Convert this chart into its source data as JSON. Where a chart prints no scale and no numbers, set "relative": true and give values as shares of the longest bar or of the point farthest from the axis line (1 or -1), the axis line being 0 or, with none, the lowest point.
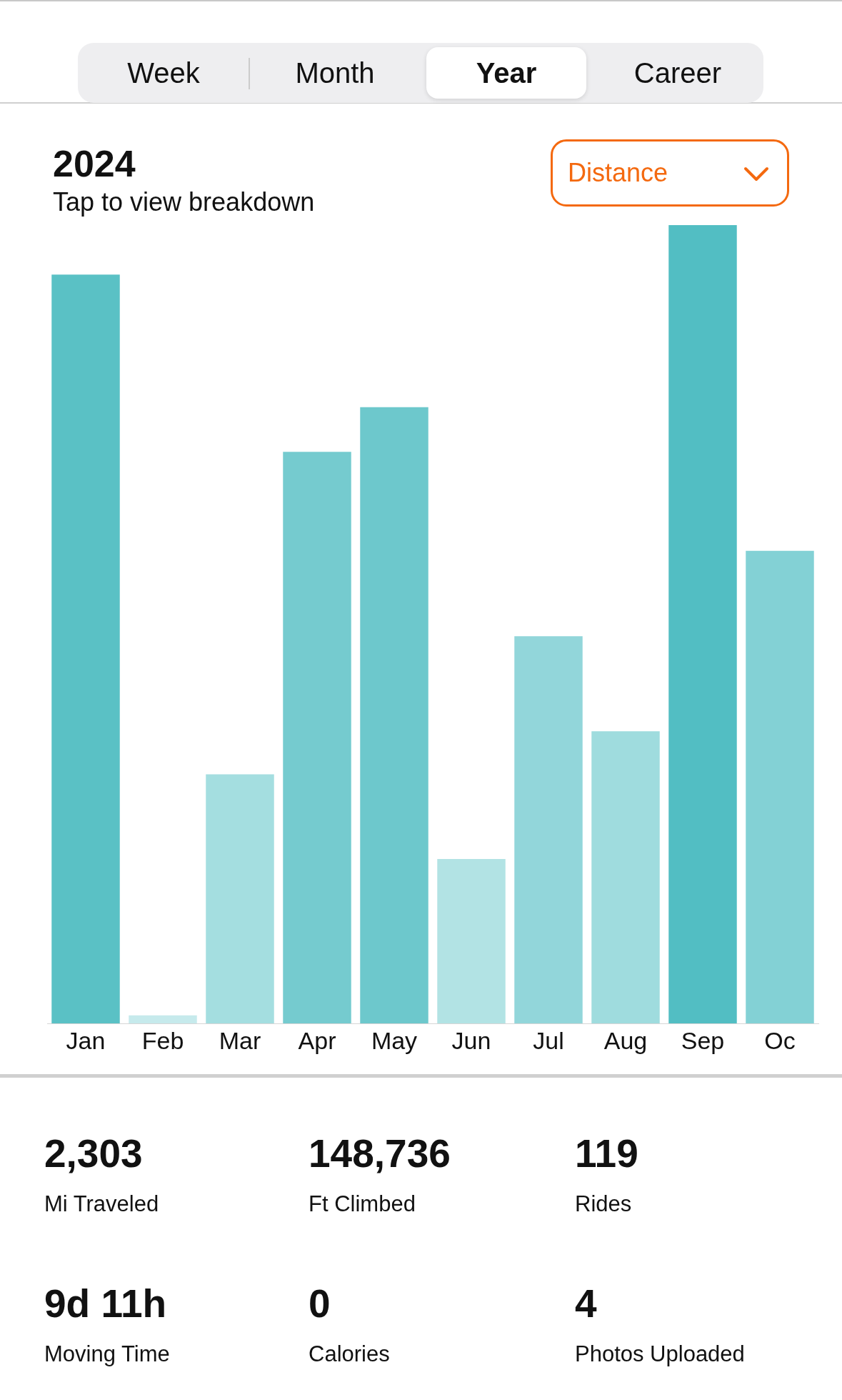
{
  "chart_data": [
    {
      "type": "bar",
      "title": "2024",
      "subtitle": "Tap to view breakdown",
      "categories": [
        "Jan",
        "Feb",
        "Mar",
        "Apr",
        "May",
        "Jun",
        "Jul",
        "Aug",
        "Sep",
        "Oc"
      ],
      "values": [
        0.938,
        0.01,
        0.312,
        0.716,
        0.772,
        0.206,
        0.485,
        0.366,
        1,
        0.592
      ],
      "colors": [
        "#5ac1c5",
        "#c6eaec",
        "#a4dee0",
        "#75cbcf",
        "#6dc8cc",
        "#b2e3e4",
        "#92d6da",
        "#9fdcde",
        "#52bec3",
        "#83d1d5"
      ],
      "relative": true,
      "annotations": [
        "Week",
        "Month",
        "Year",
        "Career",
        "Distance"
      ]
    },
    {
      "type": "other",
      "annotations": [
        "2,303",
        "Mi Traveled",
        "148,736",
        "Ft Climbed",
        "119",
        "Rides",
        "9d 11h",
        "Moving Time",
        "0",
        "Calories",
        "4",
        "Photos Uploaded"
      ]
    }
  ]
}
